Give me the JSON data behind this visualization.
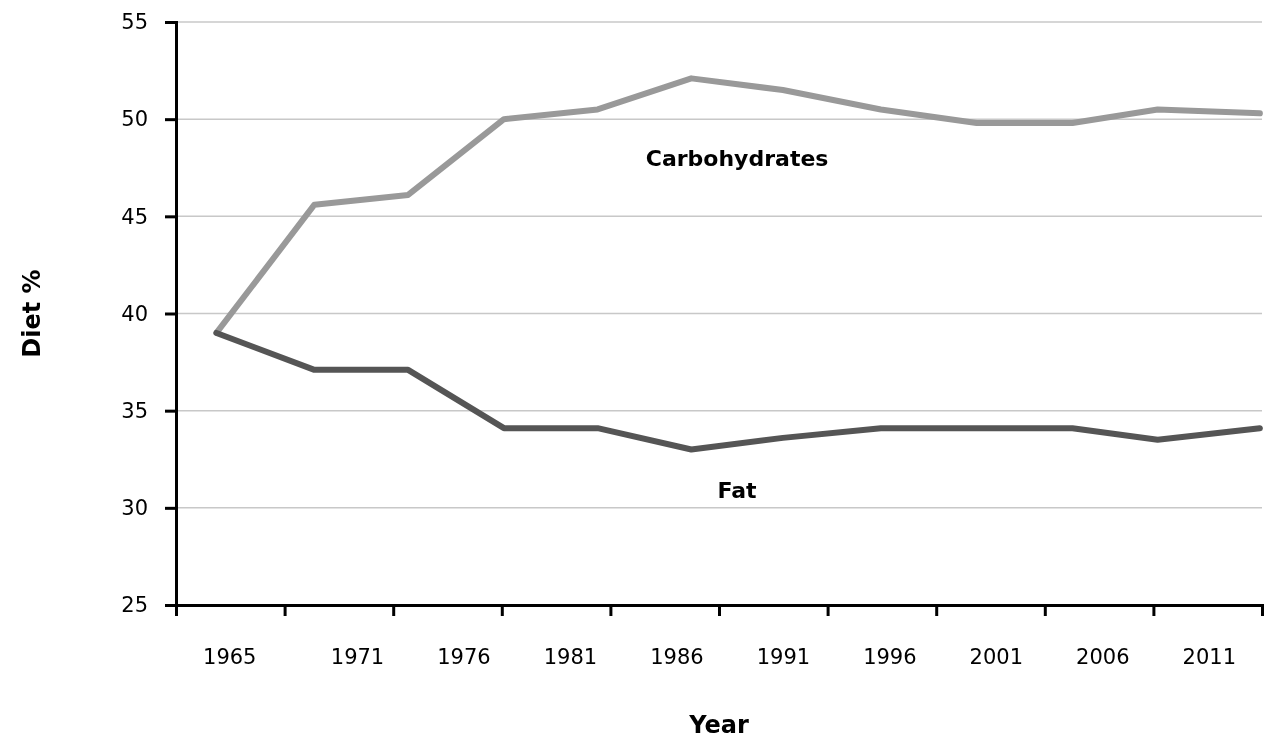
{
  "chart_data": {
    "type": "line",
    "xlabel": "Year",
    "ylabel": "Diet %",
    "x": [
      1964.4,
      1969.0,
      1973.4,
      1977.9,
      1982.3,
      1986.7,
      1991.0,
      1995.6,
      2000.1,
      2004.6,
      2008.6,
      2013.4
    ],
    "series": [
      {
        "name": "Carbohydrates",
        "color": "#999999",
        "values": [
          39.0,
          45.6,
          46.1,
          50.0,
          50.5,
          52.1,
          51.5,
          50.5,
          49.8,
          49.8,
          50.5,
          50.3
        ]
      },
      {
        "name": "Fat",
        "color": "#555555",
        "values": [
          39.0,
          37.1,
          37.1,
          34.1,
          34.1,
          33.0,
          33.6,
          34.1,
          34.1,
          34.1,
          33.5,
          34.1
        ]
      }
    ],
    "xlim": [
      1962.5,
      2013.5
    ],
    "xticks": [
      {
        "value": 1962.5,
        "label": null
      },
      {
        "value": 1967.6,
        "label": null
      },
      {
        "value": 1972.7,
        "label": null
      },
      {
        "value": 1977.8,
        "label": null
      },
      {
        "value": 1982.9,
        "label": null
      },
      {
        "value": 1988.0,
        "label": null
      },
      {
        "value": 1993.1,
        "label": null
      },
      {
        "value": 1998.2,
        "label": null
      },
      {
        "value": 2003.3,
        "label": null
      },
      {
        "value": 2008.4,
        "label": null
      },
      {
        "value": 2013.5,
        "label": null
      },
      1965,
      1971,
      1976,
      1981,
      1986,
      1991,
      1996,
      2001,
      2006,
      2011
    ],
    "ylim": [
      25,
      55
    ],
    "yticks": [
      25,
      30,
      35,
      40,
      45,
      50,
      55
    ],
    "grid": "y",
    "legend": false,
    "marker": "none",
    "line_style": "solid"
  }
}
